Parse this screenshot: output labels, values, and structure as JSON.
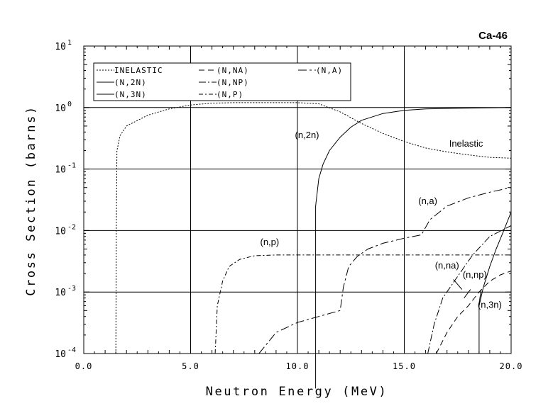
{
  "chart_data": {
    "type": "line",
    "title": "Ca-46",
    "xlabel": "Neutron Energy (MeV)",
    "ylabel": "Cross Section (barns)",
    "xlim": [
      0,
      20
    ],
    "ylim": [
      0.0001,
      10
    ],
    "yscale": "log",
    "grid": "major",
    "legend_position": "top-left",
    "x_ticks": [
      "0.0",
      "5.0",
      "10.0",
      "15.0",
      "20.0"
    ],
    "y_ticks": [
      {
        "base": "10",
        "exp": "-4"
      },
      {
        "base": "10",
        "exp": "-3"
      },
      {
        "base": "10",
        "exp": "-2"
      },
      {
        "base": "10",
        "exp": "-1"
      },
      {
        "base": "10",
        "exp": "0"
      },
      {
        "base": "10",
        "exp": "1"
      }
    ],
    "legend": [
      {
        "label": "INELASTIC",
        "dash": "2,2"
      },
      {
        "label": "(N,NA)",
        "dash": "8,5"
      },
      {
        "label": "(N,A)",
        "dash": "12,4,3,4"
      },
      {
        "label": "(N,2N)",
        "dash": ""
      },
      {
        "label": "(N,NP)",
        "dash": "10,3,2,3"
      },
      {
        "label": "(N,3N)",
        "dash": ""
      },
      {
        "label": "(N,P)",
        "dash": "6,3,2,3"
      }
    ],
    "series": [
      {
        "key": "inelastic",
        "dash": "2,2",
        "points": [
          [
            1.5,
            0.0001
          ],
          [
            1.52,
            0.01
          ],
          [
            1.55,
            0.2
          ],
          [
            1.7,
            0.35
          ],
          [
            2,
            0.5
          ],
          [
            3,
            0.75
          ],
          [
            4,
            0.95
          ],
          [
            5,
            1.1
          ],
          [
            6,
            1.18
          ],
          [
            7,
            1.2
          ],
          [
            8,
            1.2
          ],
          [
            9,
            1.2
          ],
          [
            10,
            1.2
          ],
          [
            11,
            1.15
          ],
          [
            12,
            0.85
          ],
          [
            13,
            0.55
          ],
          [
            14,
            0.38
          ],
          [
            15,
            0.28
          ],
          [
            16,
            0.22
          ],
          [
            17,
            0.19
          ],
          [
            18,
            0.17
          ],
          [
            19,
            0.155
          ],
          [
            20,
            0.15
          ]
        ]
      },
      {
        "key": "n2n",
        "dash": "",
        "points": [
          [
            10.85,
            2.7e-05
          ],
          [
            10.85,
            0.025
          ],
          [
            11,
            0.07
          ],
          [
            11.2,
            0.12
          ],
          [
            11.5,
            0.2
          ],
          [
            12,
            0.33
          ],
          [
            12.5,
            0.48
          ],
          [
            13,
            0.62
          ],
          [
            14,
            0.8
          ],
          [
            15,
            0.9
          ],
          [
            16,
            0.95
          ],
          [
            18,
            0.98
          ],
          [
            20,
            1.0
          ]
        ]
      },
      {
        "key": "np",
        "dash": "6,3,2,3",
        "points": [
          [
            6.15,
            0.0001
          ],
          [
            6.25,
            0.0006
          ],
          [
            6.5,
            0.0015
          ],
          [
            6.8,
            0.0026
          ],
          [
            7.3,
            0.0034
          ],
          [
            8,
            0.0039
          ],
          [
            9,
            0.004
          ],
          [
            10,
            0.004
          ],
          [
            12,
            0.004
          ],
          [
            14,
            0.004
          ],
          [
            16,
            0.004
          ],
          [
            18,
            0.004
          ],
          [
            20,
            0.004
          ]
        ]
      },
      {
        "key": "na",
        "dash": "12,4,3,4",
        "points": [
          [
            8.2,
            0.0001
          ],
          [
            9,
            0.00022
          ],
          [
            10,
            0.00032
          ],
          [
            11,
            0.0004
          ],
          [
            12,
            0.0005
          ],
          [
            12.15,
            0.0012
          ],
          [
            12.4,
            0.0026
          ],
          [
            12.8,
            0.0038
          ],
          [
            13.3,
            0.005
          ],
          [
            14,
            0.0062
          ],
          [
            15,
            0.0075
          ],
          [
            15.8,
            0.0085
          ],
          [
            16.2,
            0.015
          ],
          [
            17,
            0.025
          ],
          [
            18,
            0.034
          ],
          [
            19,
            0.042
          ],
          [
            20,
            0.05
          ]
        ]
      },
      {
        "key": "nna",
        "dash": "8,5",
        "points": [
          [
            16.5,
            0.0001
          ],
          [
            17,
            0.00022
          ],
          [
            17.5,
            0.0004
          ],
          [
            18,
            0.0006
          ],
          [
            18.5,
            0.001
          ],
          [
            19,
            0.0015
          ],
          [
            19.5,
            0.0019
          ],
          [
            20,
            0.0022
          ]
        ]
      },
      {
        "key": "nnp",
        "dash": "10,3,2,3",
        "points": [
          [
            16.1,
            0.0001
          ],
          [
            16.4,
            0.0003
          ],
          [
            16.8,
            0.0008
          ],
          [
            17.5,
            0.0018
          ],
          [
            18.2,
            0.004
          ],
          [
            19,
            0.008
          ],
          [
            20,
            0.012
          ]
        ]
      },
      {
        "key": "n3n",
        "dash": "",
        "points": [
          [
            18.5,
            0.0001
          ],
          [
            18.5,
            0.0006
          ],
          [
            18.7,
            0.0012
          ],
          [
            19,
            0.0026
          ],
          [
            19.3,
            0.005
          ],
          [
            19.6,
            0.009
          ],
          [
            20,
            0.02
          ]
        ]
      }
    ],
    "annotations": [
      {
        "text": "(n,2n)",
        "x": 10.45,
        "y": 0.32,
        "anchor": "middle"
      },
      {
        "text": "Inelastic",
        "x": 17.1,
        "y": 0.23,
        "anchor": "start"
      },
      {
        "text": "(n,a)",
        "x": 16.1,
        "y": 0.027,
        "anchor": "middle"
      },
      {
        "text": "(n,p)",
        "x": 8.7,
        "y": 0.0058,
        "anchor": "middle"
      },
      {
        "text": "(n,na)",
        "x": 17.0,
        "y": 0.0024,
        "anchor": "middle"
      },
      {
        "text": "(n,np)",
        "x": 18.3,
        "y": 0.0017,
        "anchor": "middle"
      },
      {
        "text": "(n,3n)",
        "x": 19.0,
        "y": 0.00055,
        "anchor": "middle"
      }
    ],
    "leader_lines": [
      {
        "from": [
          17.3,
          0.0016
        ],
        "to": [
          17.7,
          0.0011
        ]
      },
      {
        "from": [
          18.1,
          0.0011
        ],
        "to": [
          17.8,
          0.0008
        ]
      },
      {
        "from": [
          18.5,
          0.00065
        ],
        "to": [
          18.6,
          0.0011
        ]
      }
    ]
  }
}
